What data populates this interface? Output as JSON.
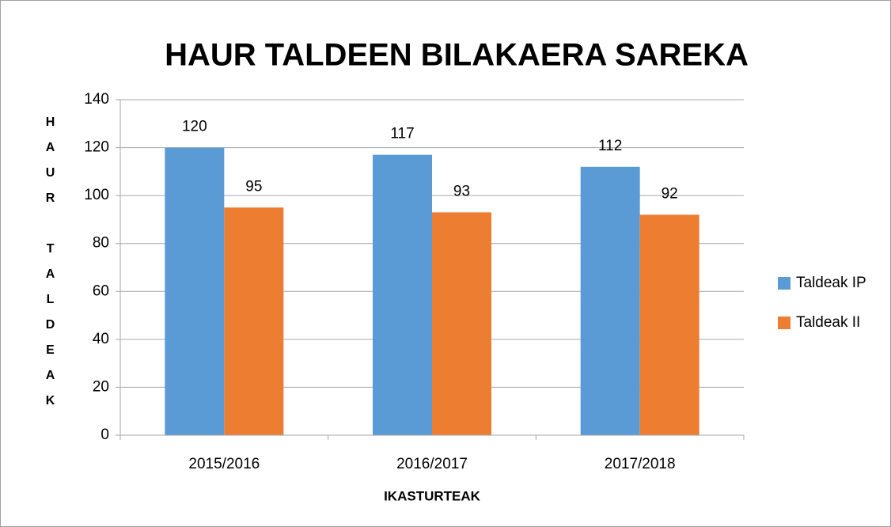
{
  "chart_data": {
    "type": "bar",
    "title": "HAUR TALDEEN BILAKAERA SAREKA",
    "x_label": "IKASTURTEAK",
    "y_label": "HAUR TALDEAK",
    "categories": [
      "2015/2016",
      "2016/2017",
      "2017/2018"
    ],
    "series": [
      {
        "name": "Taldeak IP",
        "color": "#5b9bd5",
        "values": [
          120,
          117,
          112
        ]
      },
      {
        "name": "Taldeak II",
        "color": "#ed7d31",
        "values": [
          95,
          93,
          92
        ]
      }
    ],
    "ylim": [
      0,
      140
    ],
    "yticks": [
      0,
      20,
      40,
      60,
      80,
      100,
      120,
      140
    ],
    "grid": true,
    "legend": "right"
  }
}
